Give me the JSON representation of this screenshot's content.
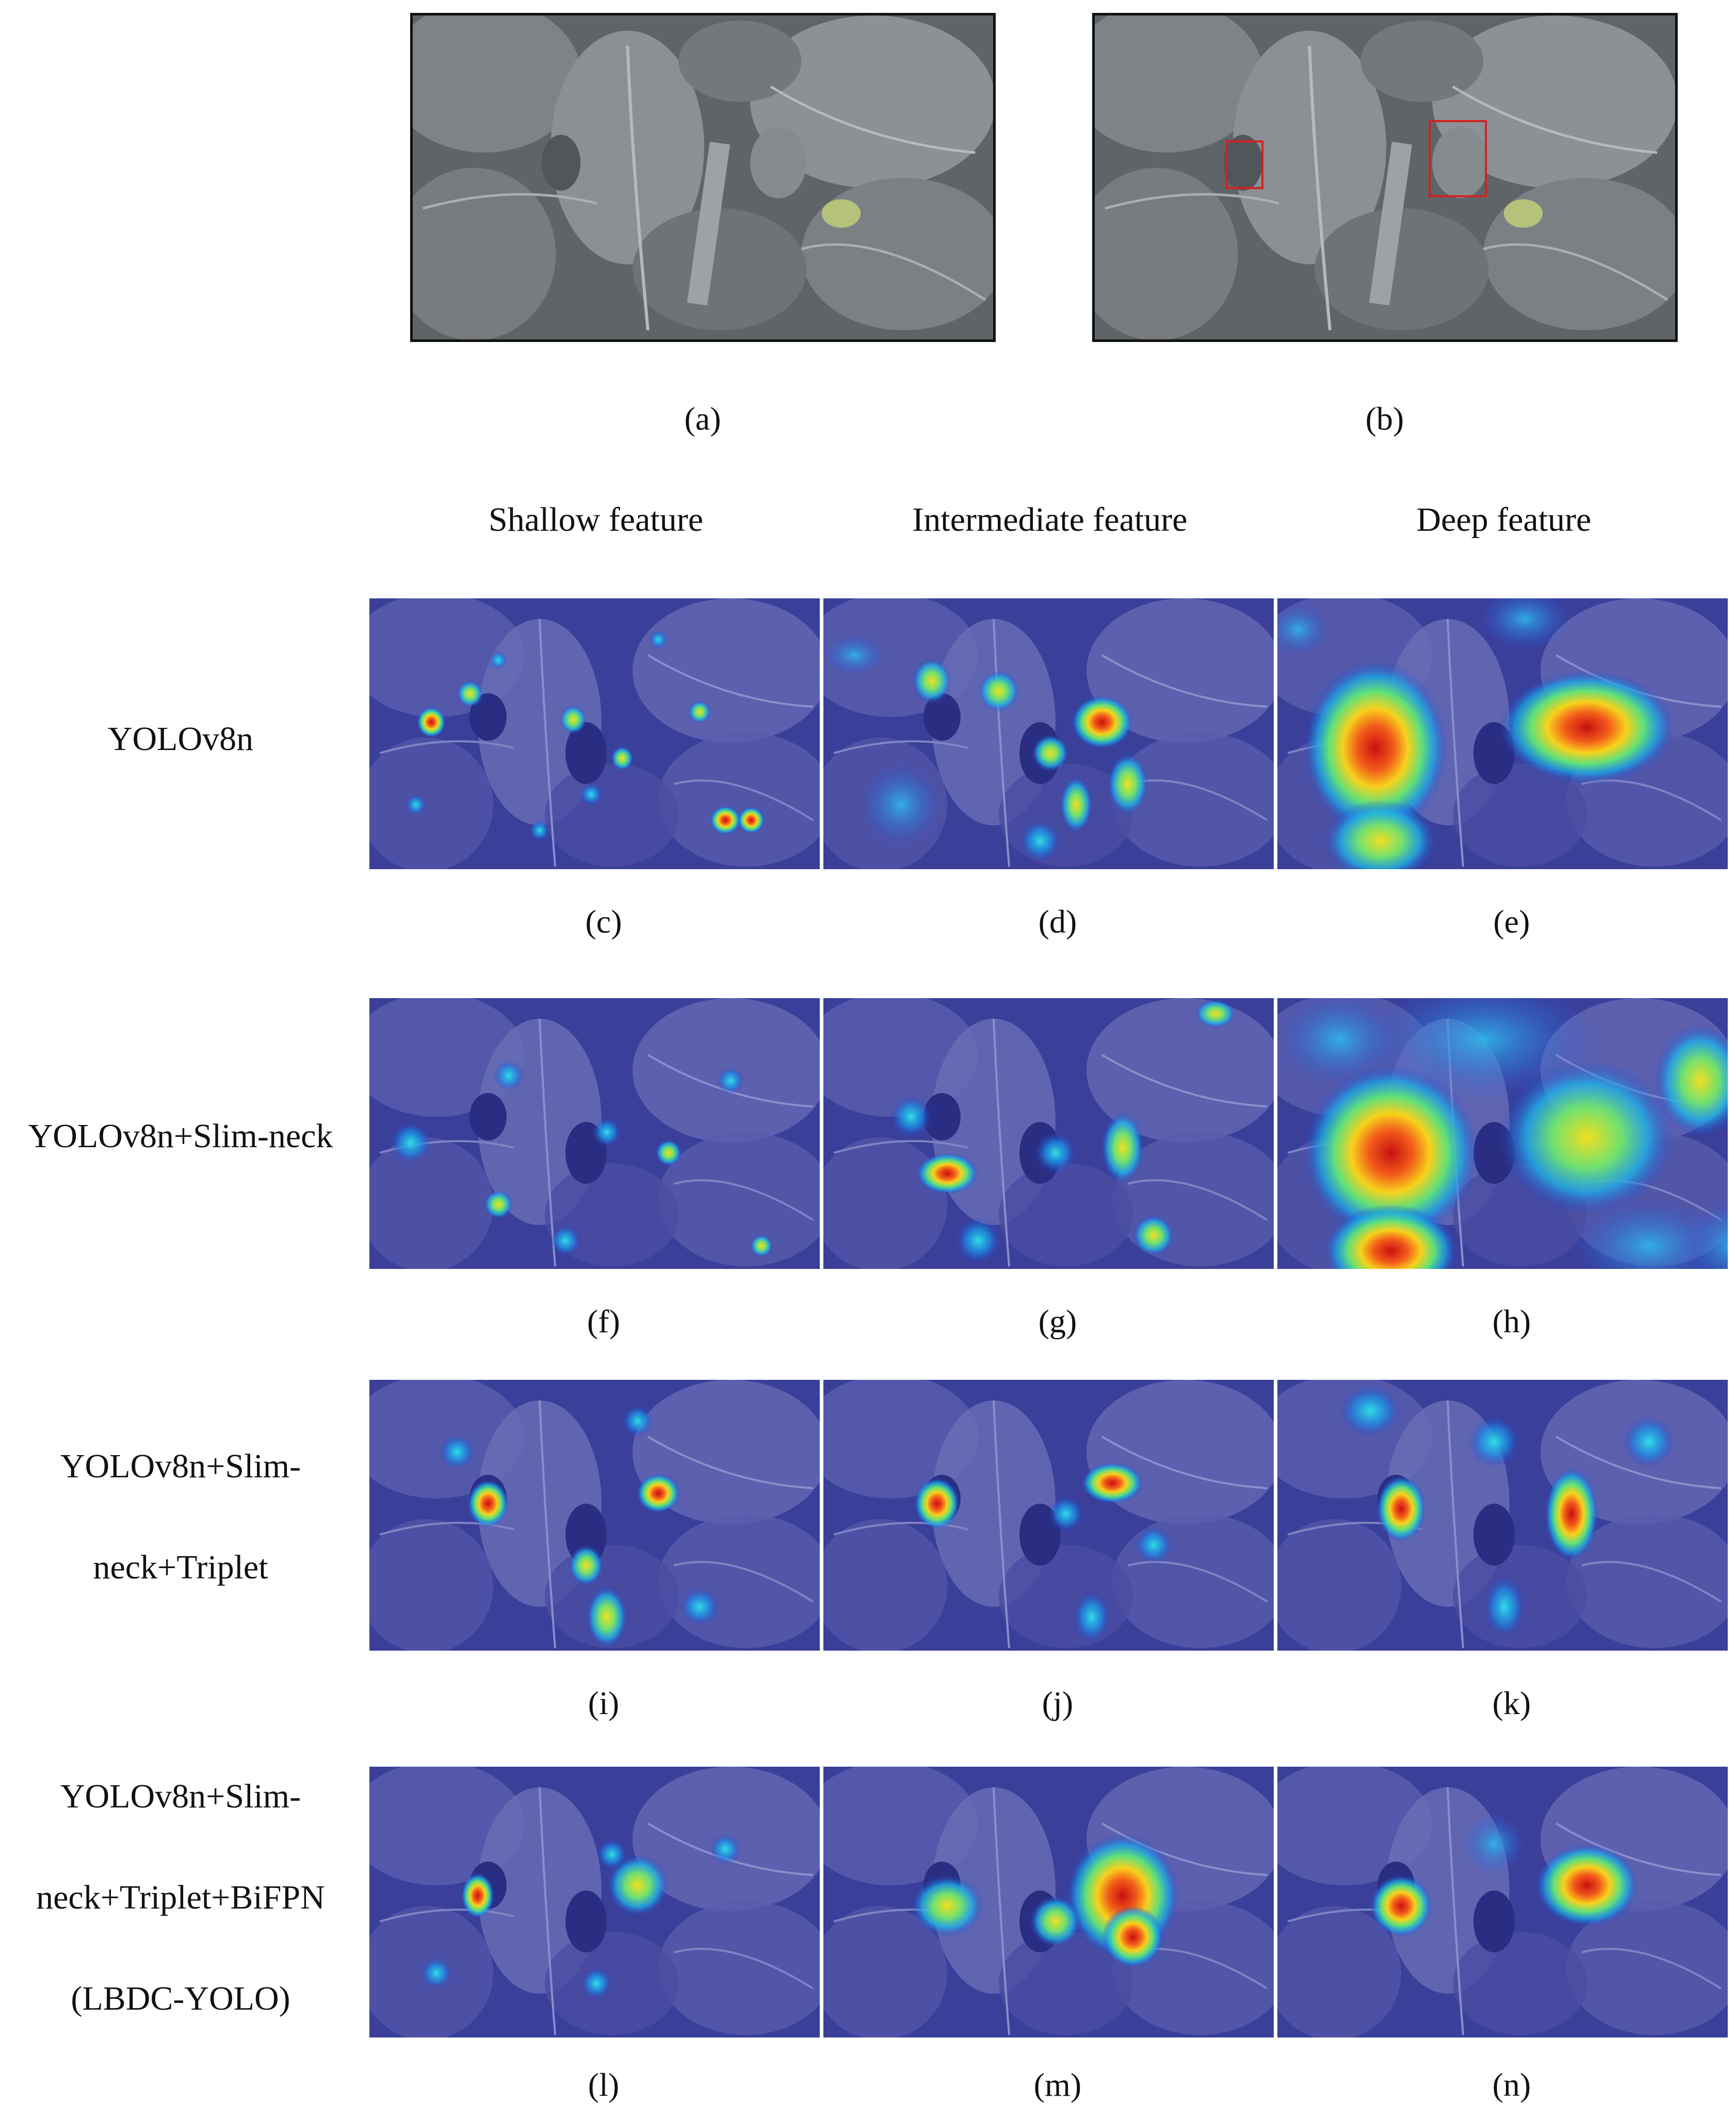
{
  "top": {
    "labels": [
      "(a)",
      "(b)"
    ]
  },
  "columns": [
    "Shallow feature",
    "Intermediate feature",
    "Deep feature"
  ],
  "rows": [
    {
      "lines": [
        "YOLOv8n"
      ],
      "labels": [
        "(c)",
        "(d)",
        "(e)"
      ]
    },
    {
      "lines": [
        "YOLOv8n+Slim-neck"
      ],
      "labels": [
        "(f)",
        "(g)",
        "(h)"
      ]
    },
    {
      "lines": [
        "YOLOv8n+Slim-",
        "neck+Triplet"
      ],
      "labels": [
        "(i)",
        "(j)",
        "(k)"
      ]
    },
    {
      "lines": [
        "YOLOv8n+Slim-",
        "neck+Triplet+BiFPN",
        "(LBDC-YOLO)"
      ],
      "labels": [
        "(l)",
        "(m)",
        "(n)"
      ]
    }
  ],
  "colors": {
    "photo_base": "#6b7074",
    "heatmap_base": "#3a3f9a",
    "hot": "#e0241a",
    "annotation_box": "#d42020"
  }
}
